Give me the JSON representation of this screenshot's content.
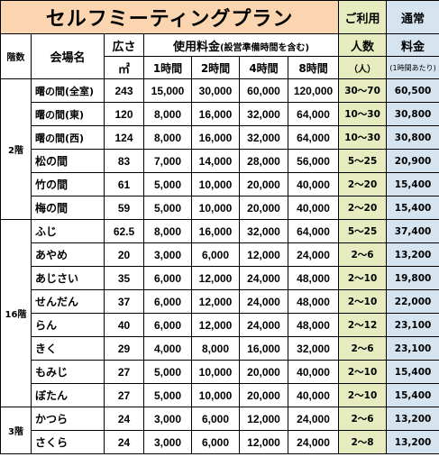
{
  "title": "セルフミーティングプラン",
  "header": {
    "riyou": "ご利用",
    "tsujo": "通常",
    "floor": "階数",
    "venue": "会場名",
    "area": "広さ",
    "area_unit": "㎡",
    "fee": "使用料金",
    "fee_note": "(設営準備時間を含む)",
    "cap": "人数",
    "cap_unit": "（人）",
    "rate": "料金",
    "rate_note": "(1時間あたり)",
    "h1": "1時間",
    "h2": "2時間",
    "h4": "4時間",
    "h8": "8時間"
  },
  "floors": [
    {
      "label": "2階",
      "rows": [
        {
          "name": "曙の間(全室)",
          "area": "243",
          "h1": "15,000",
          "h2": "30,000",
          "h4": "60,000",
          "h8": "120,000",
          "cap": "30〜70",
          "rate": "60,500"
        },
        {
          "name": "曙の間(東)",
          "area": "120",
          "h1": "8,000",
          "h2": "16,000",
          "h4": "32,000",
          "h8": "64,000",
          "cap": "10〜30",
          "rate": "30,800"
        },
        {
          "name": "曙の間(西)",
          "area": "124",
          "h1": "8,000",
          "h2": "16,000",
          "h4": "32,000",
          "h8": "64,000",
          "cap": "10〜30",
          "rate": "30,800"
        },
        {
          "name": "松の間",
          "area": "83",
          "h1": "7,000",
          "h2": "14,000",
          "h4": "28,000",
          "h8": "56,000",
          "cap": "5〜25",
          "rate": "20,900"
        },
        {
          "name": "竹の間",
          "area": "61",
          "h1": "5,000",
          "h2": "10,000",
          "h4": "20,000",
          "h8": "40,000",
          "cap": "2〜20",
          "rate": "15,400"
        },
        {
          "name": "梅の間",
          "area": "59",
          "h1": "5,000",
          "h2": "10,000",
          "h4": "20,000",
          "h8": "40,000",
          "cap": "2〜20",
          "rate": "15,400"
        }
      ]
    },
    {
      "label": "16階",
      "rows": [
        {
          "name": "ふじ",
          "area": "62.5",
          "h1": "8,000",
          "h2": "16,000",
          "h4": "32,000",
          "h8": "64,000",
          "cap": "5〜25",
          "rate": "37,400"
        },
        {
          "name": "あやめ",
          "area": "20",
          "h1": "3,000",
          "h2": "6,000",
          "h4": "12,000",
          "h8": "24,000",
          "cap": "2〜6",
          "rate": "13,200"
        },
        {
          "name": "あじさい",
          "area": "35",
          "h1": "6,000",
          "h2": "12,000",
          "h4": "24,000",
          "h8": "48,000",
          "cap": "2〜10",
          "rate": "19,800"
        },
        {
          "name": "せんだん",
          "area": "37",
          "h1": "6,000",
          "h2": "12,000",
          "h4": "24,000",
          "h8": "48,000",
          "cap": "2〜10",
          "rate": "22,000"
        },
        {
          "name": "らん",
          "area": "40",
          "h1": "6,000",
          "h2": "12,000",
          "h4": "24,000",
          "h8": "48,000",
          "cap": "2〜12",
          "rate": "23,100"
        },
        {
          "name": "きく",
          "area": "29",
          "h1": "4,000",
          "h2": "8,000",
          "h4": "16,000",
          "h8": "32,000",
          "cap": "2〜6",
          "rate": "23,100"
        },
        {
          "name": "もみじ",
          "area": "27",
          "h1": "5,000",
          "h2": "10,000",
          "h4": "20,000",
          "h8": "40,000",
          "cap": "2〜10",
          "rate": "15,400"
        },
        {
          "name": "ぼたん",
          "area": "27",
          "h1": "5,000",
          "h2": "10,000",
          "h4": "20,000",
          "h8": "40,000",
          "cap": "2〜10",
          "rate": "15,400"
        }
      ]
    },
    {
      "label": "3階",
      "rows": [
        {
          "name": "かつら",
          "area": "24",
          "h1": "3,000",
          "h2": "6,000",
          "h4": "12,000",
          "h8": "24,000",
          "cap": "2〜6",
          "rate": "13,200"
        },
        {
          "name": "さくら",
          "area": "24",
          "h1": "3,000",
          "h2": "6,000",
          "h4": "12,000",
          "h8": "24,000",
          "cap": "2〜8",
          "rate": "13,200"
        }
      ]
    }
  ]
}
